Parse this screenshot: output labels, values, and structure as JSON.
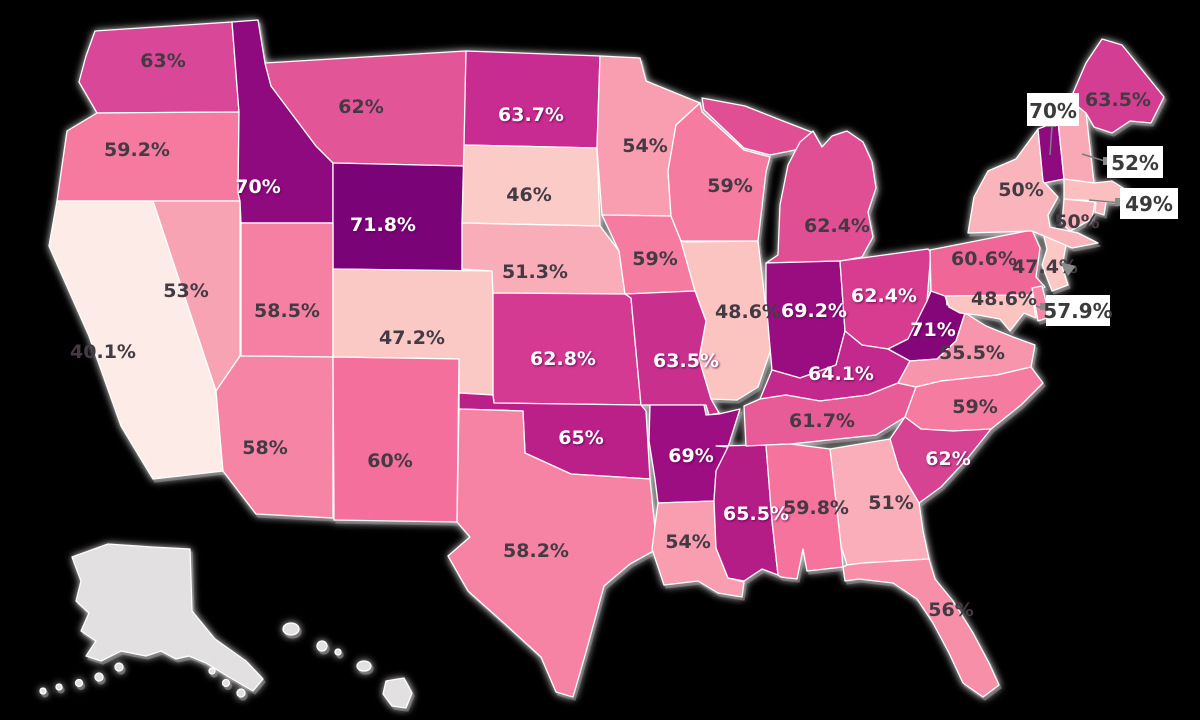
{
  "chart_data": {
    "type": "heatmap",
    "subtype": "us-choropleth",
    "title": "",
    "legend": "none",
    "background": "#000000",
    "state_border_color": "#ffffff",
    "no_data_color": "#e2e0e1",
    "no_data_states": [
      "Alaska",
      "Hawaii"
    ],
    "unit": "%",
    "categories": [
      "WA",
      "OR",
      "CA",
      "NV",
      "ID",
      "MT",
      "WY",
      "UT",
      "CO",
      "AZ",
      "NM",
      "ND",
      "SD",
      "NE",
      "KS",
      "OK",
      "TX",
      "MN",
      "IA",
      "MO",
      "AR",
      "LA",
      "WI",
      "IL",
      "MS",
      "MI",
      "IN",
      "OH",
      "KY",
      "TN",
      "WV",
      "VA",
      "NC",
      "SC",
      "GA",
      "AL",
      "FL",
      "PA",
      "NY",
      "NJ",
      "MD",
      "DE",
      "CT",
      "RI",
      "MA",
      "VT",
      "NH",
      "ME",
      "AK",
      "HI"
    ],
    "values": [
      63,
      59.2,
      40.1,
      53,
      70,
      62,
      71.8,
      58.5,
      47.2,
      58,
      60,
      63.7,
      46,
      51.3,
      62.8,
      65,
      58.2,
      54,
      59,
      63.5,
      69,
      54,
      59,
      48.6,
      65.5,
      62.4,
      69.2,
      62.4,
      64.1,
      61.7,
      71,
      55.5,
      59,
      62,
      51,
      59.8,
      56,
      60.6,
      50,
      47.4,
      48.6,
      57.9,
      50,
      null,
      49,
      70,
      52,
      63.5,
      null,
      null
    ]
  },
  "map": {
    "states": {
      "WA": {
        "name": "Washington",
        "label": "63%",
        "color": "#d84798",
        "text": "dark"
      },
      "OR": {
        "name": "Oregon",
        "label": "59.2%",
        "color": "#f679a0",
        "text": "dark"
      },
      "CA": {
        "name": "California",
        "label": "40.1%",
        "color": "#fcebe6",
        "text": "dark"
      },
      "NV": {
        "name": "Nevada",
        "label": "53%",
        "color": "#f8a3b3",
        "text": "dark"
      },
      "ID": {
        "name": "Idaho",
        "label": "70%",
        "color": "#8f0a7f",
        "text": "light"
      },
      "MT": {
        "name": "Montana",
        "label": "62%",
        "color": "#e25596",
        "text": "dark"
      },
      "WY": {
        "name": "Wyoming",
        "label": "71.8%",
        "color": "#7a0378",
        "text": "light"
      },
      "UT": {
        "name": "Utah",
        "label": "58.5%",
        "color": "#f680a3",
        "text": "dark"
      },
      "CO": {
        "name": "Colorado",
        "label": "47.2%",
        "color": "#fbc9c5",
        "text": "dark"
      },
      "AZ": {
        "name": "Arizona",
        "label": "58%",
        "color": "#f684a5",
        "text": "dark"
      },
      "NM": {
        "name": "New Mexico",
        "label": "60%",
        "color": "#f56f9c",
        "text": "dark"
      },
      "ND": {
        "name": "North Dakota",
        "label": "63.7%",
        "color": "#c92c90",
        "text": "light"
      },
      "SD": {
        "name": "South Dakota",
        "label": "46%",
        "color": "#fbccc7",
        "text": "dark"
      },
      "NE": {
        "name": "Nebraska",
        "label": "51.3%",
        "color": "#f9adb8",
        "text": "dark"
      },
      "KS": {
        "name": "Kansas",
        "label": "62.8%",
        "color": "#d53a92",
        "text": "light"
      },
      "OK": {
        "name": "Oklahoma",
        "label": "65%",
        "color": "#bb2089",
        "text": "light"
      },
      "TX": {
        "name": "Texas",
        "label": "58.2%",
        "color": "#f682a4",
        "text": "dark"
      },
      "MN": {
        "name": "Minnesota",
        "label": "54%",
        "color": "#f89eb0",
        "text": "dark"
      },
      "IA": {
        "name": "Iowa",
        "label": "59%",
        "color": "#f67ba1",
        "text": "dark"
      },
      "MO": {
        "name": "Missouri",
        "label": "63.5%",
        "color": "#c9308e",
        "text": "light"
      },
      "AR": {
        "name": "Arkansas",
        "label": "69%",
        "color": "#9c0e81",
        "text": "light"
      },
      "LA": {
        "name": "Louisiana",
        "label": "54%",
        "color": "#f89eb0",
        "text": "dark"
      },
      "WI": {
        "name": "Wisconsin",
        "label": "59%",
        "color": "#f67ba1",
        "text": "dark"
      },
      "IL": {
        "name": "Illinois",
        "label": "48.6%",
        "color": "#fbc4c1",
        "text": "dark"
      },
      "MS": {
        "name": "Mississippi",
        "label": "65.5%",
        "color": "#b41c86",
        "text": "light"
      },
      "MI": {
        "name": "Michigan",
        "label": "62.4%",
        "color": "#e04e94",
        "text": "dark"
      },
      "IN": {
        "name": "Indiana",
        "label": "69.2%",
        "color": "#990d80",
        "text": "light"
      },
      "OH": {
        "name": "Ohio",
        "label": "62.4%",
        "color": "#d73c90",
        "text": "light"
      },
      "KY": {
        "name": "Kentucky",
        "label": "64.1%",
        "color": "#c3298c",
        "text": "light"
      },
      "TN": {
        "name": "Tennessee",
        "label": "61.7%",
        "color": "#e75c97",
        "text": "dark"
      },
      "WV": {
        "name": "West Virginia",
        "label": "71%",
        "color": "#840679",
        "text": "light"
      },
      "VA": {
        "name": "Virginia",
        "label": "55.5%",
        "color": "#f795ad",
        "text": "dark"
      },
      "NC": {
        "name": "North Carolina",
        "label": "59%",
        "color": "#f67ba1",
        "text": "dark"
      },
      "SC": {
        "name": "South Carolina",
        "label": "62%",
        "color": "#d64393",
        "text": "light"
      },
      "GA": {
        "name": "Georgia",
        "label": "51%",
        "color": "#f9aeb9",
        "text": "dark"
      },
      "AL": {
        "name": "Alabama",
        "label": "59.8%",
        "color": "#f5739d",
        "text": "dark"
      },
      "FL": {
        "name": "Florida",
        "label": "56%",
        "color": "#f78fa9",
        "text": "dark"
      },
      "PA": {
        "name": "Pennsylvania",
        "label": "60.6%",
        "color": "#f06797",
        "text": "dark"
      },
      "NY": {
        "name": "New York",
        "label": "50%",
        "color": "#fab5bc",
        "text": "dark"
      },
      "NJ": {
        "name": "New Jersey",
        "label": "47.4%",
        "color": "#fbc8c4",
        "text": "dark"
      },
      "MD": {
        "name": "Maryland",
        "label": "48.6%",
        "color": "#fbc4c1",
        "text": "dark"
      },
      "DE": {
        "name": "Delaware",
        "label": "57.9%",
        "color": "#f685a6",
        "text": "dark"
      },
      "CT": {
        "name": "Connecticut",
        "label": "50%",
        "color": "#fab5bc",
        "text": "dark"
      },
      "RI": {
        "name": "Rhode Island",
        "label": null,
        "color": "#fab5bc",
        "text": null
      },
      "MA": {
        "name": "Massachusetts",
        "label": "49%",
        "color": "#fbbfc0",
        "text": "dark"
      },
      "VT": {
        "name": "Vermont",
        "label": "70%",
        "color": "#8f0a7f",
        "text": "dark"
      },
      "NH": {
        "name": "New Hampshire",
        "label": "52%",
        "color": "#f9a8b5",
        "text": "dark"
      },
      "ME": {
        "name": "Maine",
        "label": "63.5%",
        "color": "#d43e92",
        "text": "dark"
      },
      "AK": {
        "name": "Alaska",
        "label": null,
        "color": "#e2e0e1",
        "text": null
      },
      "HI": {
        "name": "Hawaii",
        "label": null,
        "color": "#e2e0e1",
        "text": null
      }
    },
    "callouts": [
      {
        "state": "VT",
        "label": "70%"
      },
      {
        "state": "NH",
        "label": "52%"
      },
      {
        "state": "MA",
        "label": "49%"
      },
      {
        "state": "DE",
        "label": "57.9%"
      }
    ]
  }
}
